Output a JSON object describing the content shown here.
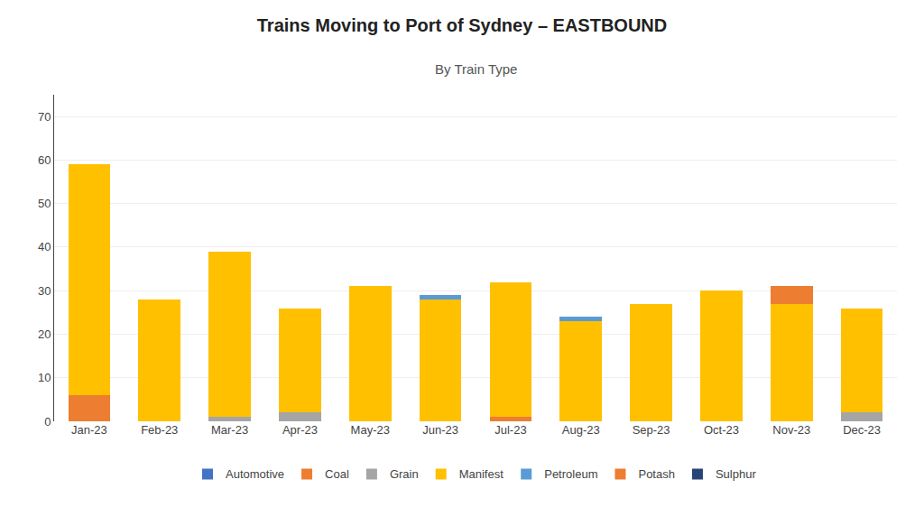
{
  "chart_data": {
    "type": "bar",
    "stacked": true,
    "title": "Trains Moving to Port of Sydney – EASTBOUND",
    "subtitle": "By Train Type",
    "categories": [
      "Jan-23",
      "Feb-23",
      "Mar-23",
      "Apr-23",
      "May-23",
      "Jun-23",
      "Jul-23",
      "Aug-23",
      "Sep-23",
      "Oct-23",
      "Nov-23",
      "Dec-23"
    ],
    "series": [
      {
        "name": "Automotive",
        "color": "#4472C4",
        "values": [
          0,
          0,
          0,
          0,
          0,
          0,
          0,
          0,
          0,
          0,
          0,
          0
        ]
      },
      {
        "name": "Coal",
        "color": "#ED7D31",
        "values": [
          6,
          0,
          0,
          0,
          0,
          0,
          1,
          0,
          0,
          0,
          0,
          0
        ]
      },
      {
        "name": "Grain",
        "color": "#A5A5A5",
        "values": [
          0,
          0,
          1,
          2,
          0,
          0,
          0,
          0,
          0,
          0,
          0,
          2
        ]
      },
      {
        "name": "Manifest",
        "color": "#FFC000",
        "values": [
          53,
          28,
          38,
          24,
          31,
          28,
          31,
          23,
          27,
          30,
          27,
          24
        ]
      },
      {
        "name": "Petroleum",
        "color": "#5B9BD5",
        "values": [
          0,
          0,
          0,
          0,
          0,
          1,
          0,
          1,
          0,
          0,
          0,
          0
        ]
      },
      {
        "name": "Potash",
        "color": "#ED7D31",
        "values": [
          0,
          0,
          0,
          0,
          0,
          0,
          0,
          0,
          0,
          0,
          4,
          0
        ]
      },
      {
        "name": "Sulphur",
        "color": "#264478",
        "values": [
          0,
          0,
          0,
          0,
          0,
          0,
          0,
          0,
          0,
          0,
          0,
          0
        ]
      }
    ],
    "ylim": [
      0,
      75
    ],
    "yticks": [
      0,
      10,
      20,
      30,
      40,
      50,
      60,
      70
    ],
    "grid": true,
    "legend": "bottom"
  }
}
